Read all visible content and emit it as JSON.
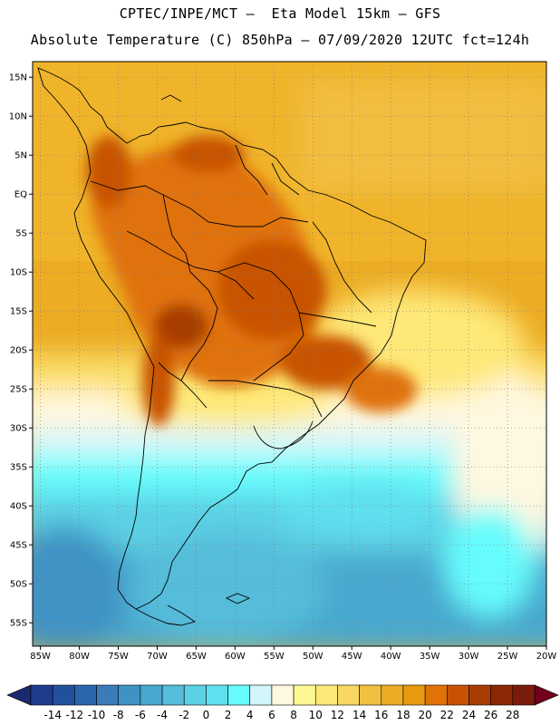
{
  "title_line1": "CPTEC/INPE/MCT –  Eta Model 15km – GFS",
  "title_line2": "Absolute Temperature (C) 850hPa – 07/09/2020 12UTC fct=124h",
  "lat_ticks": [
    "15N",
    "10N",
    "5N",
    "EQ",
    "5S",
    "10S",
    "15S",
    "20S",
    "25S",
    "30S",
    "35S",
    "40S",
    "45S",
    "50S",
    "55S"
  ],
  "lon_ticks": [
    "85W",
    "80W",
    "75W",
    "70W",
    "65W",
    "60W",
    "55W",
    "50W",
    "45W",
    "40W",
    "35W",
    "30W",
    "25W",
    "20W"
  ],
  "colorbar": {
    "labels": [
      "-14",
      "-12",
      "-10",
      "-8",
      "-6",
      "-4",
      "-2",
      "0",
      "2",
      "4",
      "6",
      "8",
      "10",
      "12",
      "14",
      "16",
      "18",
      "20",
      "22",
      "24",
      "26",
      "28"
    ],
    "colors": [
      "#1f3c8c",
      "#23509c",
      "#2a66ac",
      "#3a7cba",
      "#3f93c4",
      "#48a8cf",
      "#55bcd9",
      "#5cd0e4",
      "#60e0ee",
      "#66fcfc",
      "#d2f6fa",
      "#fff8e0",
      "#fef894",
      "#fee878",
      "#f8d860",
      "#f0c040",
      "#ecac24",
      "#e89a10",
      "#e07208",
      "#c85204",
      "#a83c04",
      "#8c2804",
      "#7a1c0c"
    ],
    "low_arrow_color": "#1a2a6e",
    "high_arrow_color": "#70001c"
  }
}
